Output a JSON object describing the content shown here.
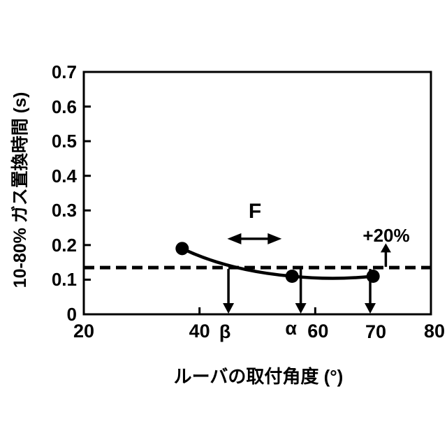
{
  "figure": {
    "background_color": "#ffffff",
    "ink_color": "#000000"
  },
  "chart_data": {
    "type": "line",
    "title": "",
    "xlabel": "ルーバの取付角度 (°)",
    "ylabel": "10-80% ガス置換時間 (s)",
    "xlim": [
      20,
      80
    ],
    "ylim": [
      0,
      0.7
    ],
    "grid": false,
    "legend": "none",
    "xticks": [
      20,
      40,
      60,
      80
    ],
    "xtick_labels": [
      "20",
      "40",
      "60",
      "80"
    ],
    "yticks": [
      0,
      0.1,
      0.2,
      0.3,
      0.4,
      0.5,
      0.6,
      0.7
    ],
    "ytick_labels": [
      "0",
      "0.1",
      "0.2",
      "0.3",
      "0.4",
      "0.5",
      "0.6",
      "0.7"
    ],
    "series": [
      {
        "name": "gas-replacement-time-curve",
        "marker": "filled-circle",
        "color": "#000000",
        "x": [
          37,
          56,
          70
        ],
        "y": [
          0.19,
          0.11,
          0.11
        ]
      }
    ],
    "reference_line": {
      "y": 0.135,
      "style": "dashed",
      "color": "#000000"
    },
    "annotations": {
      "down_arrows": [
        {
          "x": 45,
          "label": "β"
        },
        {
          "x": 57.5,
          "label": "α"
        },
        {
          "x": 69.5,
          "label": "70"
        }
      ],
      "range_arrow": {
        "label": "F",
        "x_start": 44.8,
        "x_end": 54.2,
        "y": 0.218
      },
      "plus20_arrow": {
        "label": "+20%",
        "x": 72.2,
        "from_y": 0.135,
        "to_y": 0.205
      }
    }
  }
}
